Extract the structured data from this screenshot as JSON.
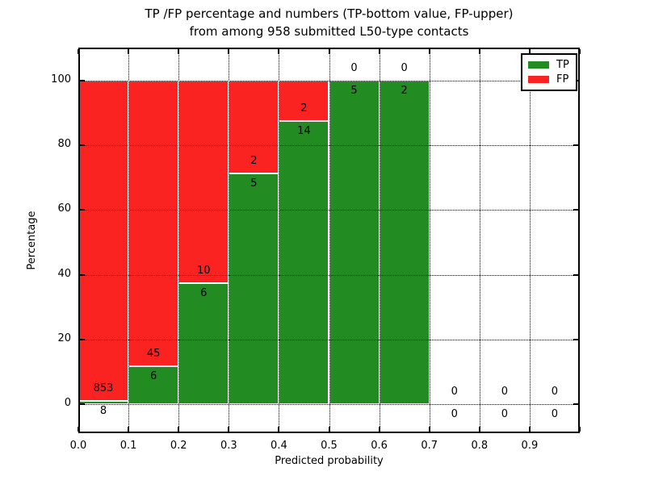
{
  "chart_data": {
    "type": "bar",
    "stacked": true,
    "title_line1": "TP /FP percentage and numbers (TP-bottom value, FP-upper)",
    "title_line2": "from among 958 submitted L50-type contacts",
    "total_contacts": 958,
    "xlabel": "Predicted probability",
    "ylabel": "Percentage",
    "xlim": [
      0.0,
      1.0
    ],
    "ylim": [
      -10,
      110
    ],
    "bin_width": 0.1,
    "grid": true,
    "legend_position": "upper right",
    "x_ticks": [
      "0.0",
      "0.1",
      "0.2",
      "0.3",
      "0.4",
      "0.5",
      "0.6",
      "0.7",
      "0.8",
      "0.9"
    ],
    "y_ticks": [
      0,
      20,
      40,
      60,
      80,
      100
    ],
    "bins": [
      {
        "x_start": 0.0,
        "tp": 8,
        "fp": 853
      },
      {
        "x_start": 0.1,
        "tp": 6,
        "fp": 45
      },
      {
        "x_start": 0.2,
        "tp": 6,
        "fp": 10
      },
      {
        "x_start": 0.3,
        "tp": 5,
        "fp": 2
      },
      {
        "x_start": 0.4,
        "tp": 14,
        "fp": 2
      },
      {
        "x_start": 0.5,
        "tp": 5,
        "fp": 0
      },
      {
        "x_start": 0.6,
        "tp": 2,
        "fp": 0
      },
      {
        "x_start": 0.7,
        "tp": 0,
        "fp": 0
      },
      {
        "x_start": 0.8,
        "tp": 0,
        "fp": 0
      },
      {
        "x_start": 0.9,
        "tp": 0,
        "fp": 0
      }
    ],
    "colors": {
      "tp": "#228b22",
      "fp": "#fb2222"
    },
    "legend": [
      {
        "label": "TP",
        "color": "#228b22"
      },
      {
        "label": "FP",
        "color": "#fb2222"
      }
    ]
  }
}
